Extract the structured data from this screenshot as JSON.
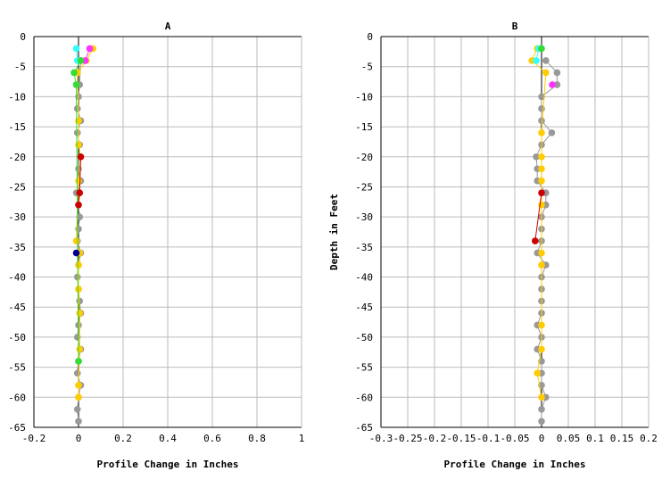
{
  "chart_data": [
    {
      "type": "line",
      "title": "A",
      "xlabel": "Profile Change in Inches",
      "ylabel": "",
      "xlim": [
        -0.2,
        1
      ],
      "ylim": [
        -65,
        0
      ],
      "x_ticks": [
        "-0.2",
        "0",
        "0.2",
        "0.4",
        "0.6",
        "0.8",
        "1"
      ],
      "y_ticks": [
        "0",
        "-5",
        "-10",
        "-15",
        "-20",
        "-25",
        "-30",
        "-35",
        "-40",
        "-45",
        "-50",
        "-55",
        "-60",
        "-65"
      ],
      "grid": true,
      "series": [
        {
          "color": "#999999",
          "points": [
            [
              0.01,
              -4
            ],
            [
              0.005,
              -8
            ],
            [
              0.0,
              -10
            ],
            [
              -0.005,
              -12
            ],
            [
              0.01,
              -14
            ],
            [
              -0.005,
              -16
            ],
            [
              0.005,
              -18
            ],
            [
              0.0,
              -22
            ],
            [
              0.01,
              -24
            ],
            [
              -0.01,
              -26
            ],
            [
              0.0,
              -28
            ],
            [
              0.005,
              -30
            ],
            [
              0.0,
              -32
            ],
            [
              -0.005,
              -34
            ],
            [
              0.01,
              -36
            ],
            [
              0.0,
              -38
            ],
            [
              -0.005,
              -40
            ],
            [
              0.0,
              -42
            ],
            [
              0.005,
              -44
            ],
            [
              0.01,
              -46
            ],
            [
              0.0,
              -48
            ],
            [
              -0.005,
              -50
            ],
            [
              0.01,
              -52
            ],
            [
              0.0,
              -54
            ],
            [
              -0.005,
              -56
            ],
            [
              0.01,
              -58
            ],
            [
              0.0,
              -60
            ],
            [
              -0.005,
              -62
            ],
            [
              0.0,
              -64
            ]
          ]
        },
        {
          "color": "#ffcc00",
          "points": [
            [
              0.065,
              -2
            ],
            [
              0.035,
              -4
            ],
            [
              -0.005,
              -6
            ],
            [
              0.0,
              -14
            ],
            [
              0.0,
              -18
            ],
            [
              0.01,
              -20
            ],
            [
              0.0,
              -24
            ],
            [
              -0.01,
              -34
            ],
            [
              0.005,
              -36
            ],
            [
              0.0,
              -38
            ],
            [
              0.0,
              -42
            ],
            [
              0.005,
              -46
            ],
            [
              0.005,
              -52
            ],
            [
              0.0,
              -58
            ],
            [
              0.0,
              -60
            ]
          ]
        },
        {
          "color": "#ff33ff",
          "points": [
            [
              0.05,
              -2
            ],
            [
              0.03,
              -4
            ]
          ]
        },
        {
          "color": "#33ffff",
          "points": [
            [
              -0.01,
              -2
            ],
            [
              -0.005,
              -4
            ]
          ]
        },
        {
          "color": "#33dd33",
          "points": [
            [
              0.01,
              -4
            ],
            [
              -0.02,
              -6
            ],
            [
              -0.01,
              -8
            ],
            [
              0.0,
              -54
            ]
          ]
        },
        {
          "color": "#cc0000",
          "points": [
            [
              0.01,
              -20
            ],
            [
              0.005,
              -26
            ],
            [
              0.0,
              -28
            ]
          ]
        },
        {
          "color": "#000099",
          "points": [
            [
              -0.01,
              -36
            ]
          ]
        }
      ]
    },
    {
      "type": "line",
      "title": "B",
      "xlabel": "Profile Change in Inches",
      "ylabel": "Depth in Feet",
      "xlim": [
        -0.3,
        0.2
      ],
      "ylim": [
        -65,
        0
      ],
      "x_ticks": [
        "-0.3",
        "-0.25",
        "-0.2",
        "-0.15",
        "-0.1",
        "-0.05",
        "0",
        "0.05",
        "0.1",
        "0.15",
        "0.2"
      ],
      "y_ticks": [
        "0",
        "-5",
        "-10",
        "-15",
        "-20",
        "-25",
        "-30",
        "-35",
        "-40",
        "-45",
        "-50",
        "-55",
        "-60",
        "-65"
      ],
      "grid": true,
      "series": [
        {
          "color": "#999999",
          "points": [
            [
              0.008,
              -4
            ],
            [
              0.029,
              -6
            ],
            [
              0.029,
              -8
            ],
            [
              0.0,
              -10
            ],
            [
              0.0,
              -12
            ],
            [
              0.0,
              -14
            ],
            [
              0.019,
              -16
            ],
            [
              0.0,
              -18
            ],
            [
              -0.01,
              -20
            ],
            [
              -0.008,
              -22
            ],
            [
              -0.008,
              -24
            ],
            [
              0.008,
              -26
            ],
            [
              0.008,
              -28
            ],
            [
              0.0,
              -30
            ],
            [
              0.0,
              -32
            ],
            [
              0.0,
              -34
            ],
            [
              -0.008,
              -36
            ],
            [
              0.008,
              -38
            ],
            [
              0.0,
              -40
            ],
            [
              0.0,
              -42
            ],
            [
              0.0,
              -44
            ],
            [
              0.0,
              -46
            ],
            [
              -0.008,
              -48
            ],
            [
              0.0,
              -50
            ],
            [
              -0.008,
              -52
            ],
            [
              0.0,
              -54
            ],
            [
              0.0,
              -56
            ],
            [
              0.0,
              -58
            ],
            [
              0.008,
              -60
            ],
            [
              0.0,
              -62
            ],
            [
              0.0,
              -64
            ]
          ]
        },
        {
          "color": "#ffcc00",
          "points": [
            [
              -0.008,
              -2
            ],
            [
              -0.018,
              -4
            ],
            [
              0.008,
              -6
            ],
            [
              0.0,
              -16
            ],
            [
              0.0,
              -20
            ],
            [
              0.0,
              -22
            ],
            [
              0.0,
              -24
            ],
            [
              0.0,
              -28
            ],
            [
              0.0,
              -36
            ],
            [
              0.0,
              -38
            ],
            [
              0.0,
              -48
            ],
            [
              0.0,
              -52
            ],
            [
              -0.008,
              -56
            ],
            [
              0.0,
              -60
            ]
          ]
        },
        {
          "color": "#33ffff",
          "points": [
            [
              -0.005,
              -2
            ],
            [
              -0.01,
              -4
            ]
          ]
        },
        {
          "color": "#33dd33",
          "points": [
            [
              0.0,
              -2
            ]
          ]
        },
        {
          "color": "#ff33ff",
          "points": [
            [
              0.02,
              -8
            ]
          ]
        },
        {
          "color": "#cc0000",
          "points": [
            [
              0.0,
              -26
            ],
            [
              -0.012,
              -34
            ]
          ]
        }
      ]
    }
  ]
}
